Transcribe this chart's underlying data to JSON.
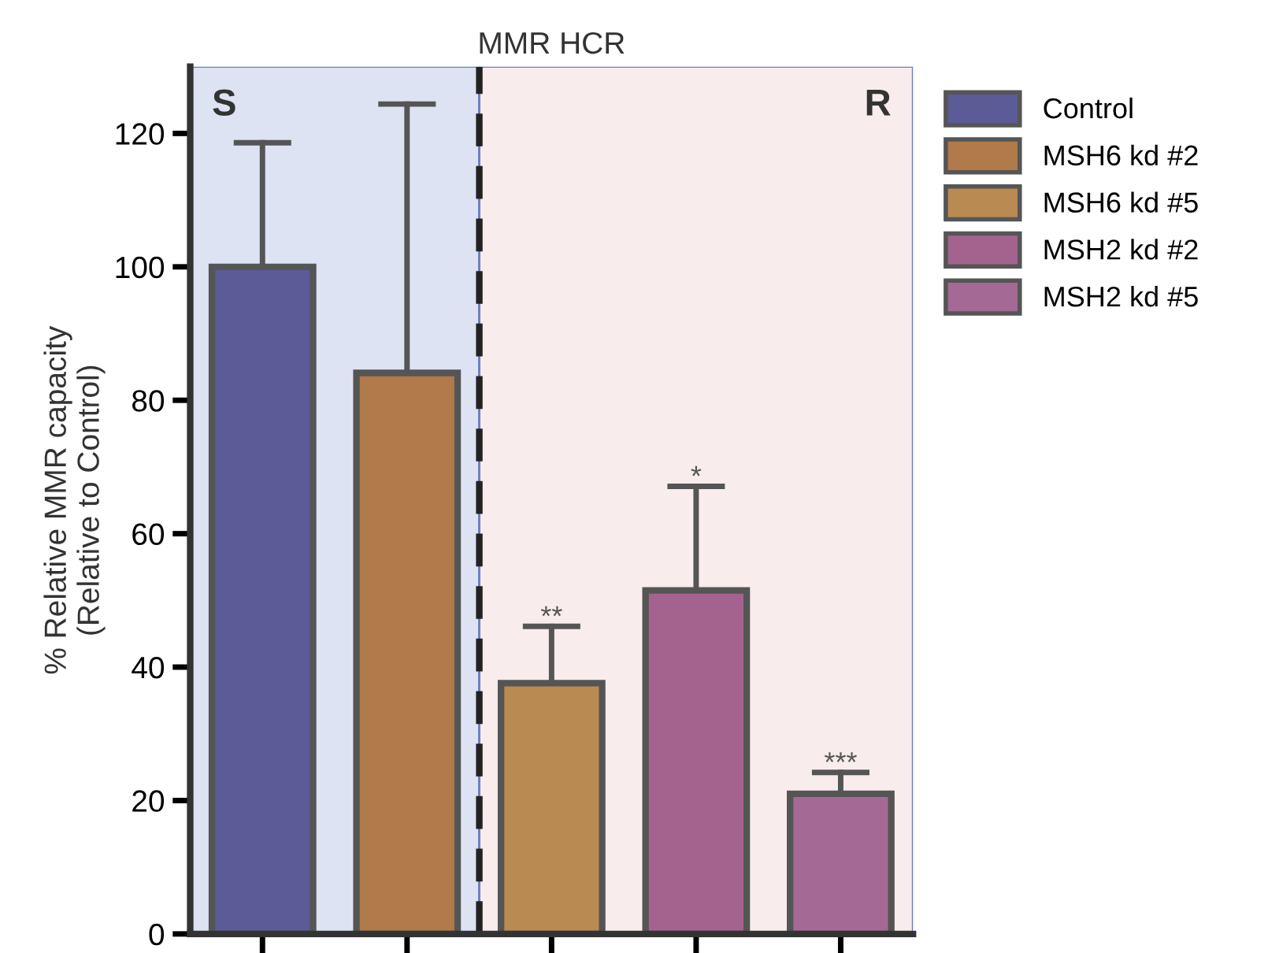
{
  "chart_data": {
    "type": "bar",
    "title": "MMR HCR",
    "ylabel": "% Relative MMR capacity\n(Relative to Control)",
    "categories": [
      null,
      null,
      null,
      null,
      null
    ],
    "series": [
      {
        "name": "Control",
        "color": "#5b5b98",
        "values": [
          100,
          null,
          null,
          null,
          null
        ],
        "errors": [
          [
            100,
            118.6
          ],
          null,
          null,
          null,
          null
        ]
      },
      {
        "name": "MSH6 kd #2",
        "color": "#b07a4a",
        "values": [
          null,
          84.1,
          null,
          null,
          null
        ],
        "errors": [
          null,
          [
            84.1,
            124.4
          ],
          null,
          null,
          null
        ]
      },
      {
        "name": "MSH6 kd #5",
        "color": "#b98a52",
        "values": [
          null,
          null,
          37.6,
          null,
          null
        ],
        "errors": [
          null,
          null,
          [
            37.6,
            46.1
          ],
          null,
          null
        ]
      },
      {
        "name": "MSH2 kd #2",
        "color": "#a4638f",
        "values": [
          null,
          null,
          null,
          51.5,
          null
        ],
        "errors": [
          null,
          null,
          null,
          [
            51.5,
            67.1
          ],
          null
        ]
      },
      {
        "name": "MSH2 kd #5",
        "color": "#a46a95",
        "values": [
          null,
          null,
          null,
          null,
          21.0
        ],
        "errors": [
          null,
          null,
          null,
          null,
          [
            21.0,
            24.2
          ]
        ]
      }
    ],
    "ylim": [
      0,
      130
    ],
    "yticks": [
      0,
      20,
      40,
      60,
      80,
      100,
      120
    ],
    "annotations": [
      "S",
      "R",
      {
        "text": "**",
        "y": 46.1
      },
      {
        "text": "*",
        "y": 67.1
      },
      {
        "text": "***",
        "y": 24.2
      }
    ],
    "grid": false,
    "legend": "right"
  }
}
